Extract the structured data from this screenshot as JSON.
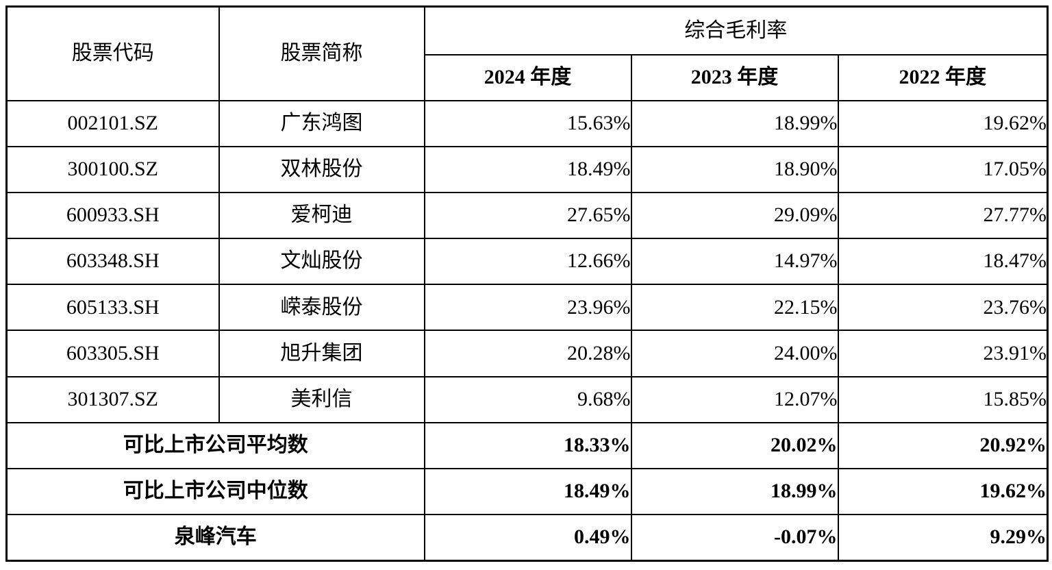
{
  "table": {
    "header": {
      "col_code": "股票代码",
      "col_name": "股票简称",
      "group": "综合毛利率",
      "years": [
        "2024 年度",
        "2023 年度",
        "2022 年度"
      ]
    },
    "companies": [
      {
        "code": "002101.SZ",
        "name": "广东鸿图",
        "y2024": "15.63%",
        "y2023": "18.99%",
        "y2022": "19.62%"
      },
      {
        "code": "300100.SZ",
        "name": "双林股份",
        "y2024": "18.49%",
        "y2023": "18.90%",
        "y2022": "17.05%"
      },
      {
        "code": "600933.SH",
        "name": "爱柯迪",
        "y2024": "27.65%",
        "y2023": "29.09%",
        "y2022": "27.77%"
      },
      {
        "code": "603348.SH",
        "name": "文灿股份",
        "y2024": "12.66%",
        "y2023": "14.97%",
        "y2022": "18.47%"
      },
      {
        "code": "605133.SH",
        "name": "嵘泰股份",
        "y2024": "23.96%",
        "y2023": "22.15%",
        "y2022": "23.76%"
      },
      {
        "code": "603305.SH",
        "name": "旭升集团",
        "y2024": "20.28%",
        "y2023": "24.00%",
        "y2022": "23.91%"
      },
      {
        "code": "301307.SZ",
        "name": "美利信",
        "y2024": "9.68%",
        "y2023": "12.07%",
        "y2022": "15.85%"
      }
    ],
    "summary": [
      {
        "label": "可比上市公司平均数",
        "y2024": "18.33%",
        "y2023": "20.02%",
        "y2022": "20.92%"
      },
      {
        "label": "可比上市公司中位数",
        "y2024": "18.49%",
        "y2023": "18.99%",
        "y2022": "19.62%"
      },
      {
        "label": "泉峰汽车",
        "y2024": "0.49%",
        "y2023": "-0.07%",
        "y2022": "9.29%"
      }
    ],
    "colors": {
      "text": "#000000",
      "border": "#000000",
      "background": "#ffffff"
    }
  }
}
